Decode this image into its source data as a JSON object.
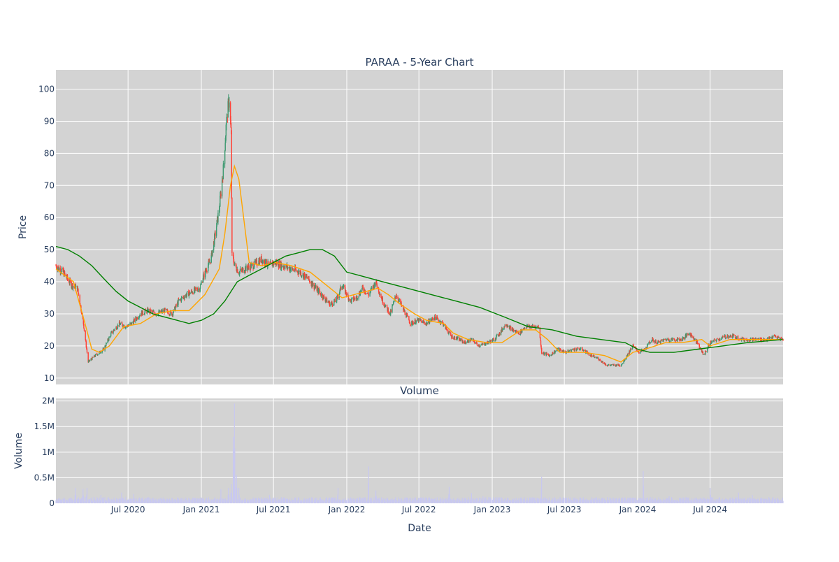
{
  "chart_data": [
    {
      "type": "candlestick",
      "title": "PARAA - 5-Year Chart",
      "xlabel": "",
      "ylabel": "Price",
      "ylim": [
        8,
        106
      ],
      "yticks": [
        10,
        20,
        30,
        40,
        50,
        60,
        70,
        80,
        90,
        100
      ],
      "grid": true,
      "background_color": "#d3d3d3",
      "candle_up_color": "#3d9970",
      "candle_down_color": "#ff4136",
      "close_series_approx": {
        "name": "",
        "x": [
          "2020-01-02",
          "2020-01-20",
          "2020-02-10",
          "2020-02-25",
          "2020-03-10",
          "2020-03-23",
          "2020-04-10",
          "2020-05-01",
          "2020-05-20",
          "2020-06-10",
          "2020-06-25",
          "2020-07-10",
          "2020-08-01",
          "2020-08-20",
          "2020-09-10",
          "2020-10-01",
          "2020-10-20",
          "2020-11-05",
          "2020-11-25",
          "2020-12-10",
          "2020-12-28",
          "2021-01-10",
          "2021-01-25",
          "2021-02-05",
          "2021-02-15",
          "2021-02-25",
          "2021-03-05",
          "2021-03-12",
          "2021-03-17",
          "2021-03-19",
          "2021-03-22",
          "2021-03-26",
          "2021-04-05",
          "2021-04-20",
          "2021-05-10",
          "2021-06-01",
          "2021-06-20",
          "2021-07-05",
          "2021-07-25",
          "2021-08-15",
          "2021-09-05",
          "2021-09-25",
          "2021-10-15",
          "2021-11-05",
          "2021-11-20",
          "2021-12-05",
          "2021-12-20",
          "2022-01-10",
          "2022-01-25",
          "2022-02-10",
          "2022-02-25",
          "2022-03-15",
          "2022-04-01",
          "2022-04-20",
          "2022-05-05",
          "2022-05-20",
          "2022-06-10",
          "2022-06-30",
          "2022-07-20",
          "2022-08-10",
          "2022-08-30",
          "2022-09-20",
          "2022-10-10",
          "2022-10-25",
          "2022-11-10",
          "2022-11-30",
          "2022-12-20",
          "2023-01-05",
          "2023-01-20",
          "2023-02-05",
          "2023-02-20",
          "2023-03-10",
          "2023-03-25",
          "2023-04-10",
          "2023-04-28",
          "2023-05-05",
          "2023-05-25",
          "2023-06-15",
          "2023-07-05",
          "2023-07-25",
          "2023-08-15",
          "2023-09-05",
          "2023-09-25",
          "2023-10-15",
          "2023-11-01",
          "2023-11-20",
          "2023-12-05",
          "2023-12-20",
          "2024-01-05",
          "2024-01-20",
          "2024-02-05",
          "2024-02-20",
          "2024-03-10",
          "2024-03-30",
          "2024-04-20",
          "2024-05-10",
          "2024-05-30",
          "2024-06-15",
          "2024-07-01",
          "2024-07-20",
          "2024-08-10",
          "2024-08-30",
          "2024-09-20",
          "2024-10-10",
          "2024-10-30",
          "2024-11-20",
          "2024-12-10",
          "2024-12-30"
        ],
        "values": [
          45,
          43,
          39,
          38,
          28,
          15,
          17,
          19,
          24,
          27,
          26,
          27,
          30,
          31,
          30,
          31,
          30,
          34,
          36,
          37,
          38,
          43,
          47,
          55,
          63,
          75,
          90,
          97,
          85,
          48,
          47,
          45,
          43,
          44,
          45,
          47,
          45,
          46,
          45,
          44,
          43,
          41,
          38,
          35,
          33,
          34,
          39,
          34,
          35,
          38,
          36,
          40,
          34,
          30,
          36,
          32,
          27,
          28,
          27,
          29,
          27,
          23,
          22,
          21,
          22,
          20,
          21,
          22,
          24,
          27,
          25,
          24,
          26,
          26,
          26,
          18,
          17,
          19,
          18,
          19,
          19,
          17,
          16,
          14,
          14,
          14,
          17,
          20,
          18,
          19,
          22,
          21,
          22,
          22,
          22,
          24,
          21,
          17,
          21,
          22,
          23,
          23,
          22,
          22,
          22,
          22,
          23,
          22
        ]
      },
      "series": [
        {
          "name": "",
          "color": "#ffa500",
          "x": [
            "2020-01-02",
            "2020-02-15",
            "2020-03-15",
            "2020-04-01",
            "2020-04-20",
            "2020-05-15",
            "2020-06-20",
            "2020-08-01",
            "2020-09-10",
            "2020-10-20",
            "2020-12-01",
            "2021-01-10",
            "2021-02-15",
            "2021-03-01",
            "2021-03-15",
            "2021-03-25",
            "2021-04-05",
            "2021-04-15",
            "2021-05-01",
            "2021-06-01",
            "2021-07-05",
            "2021-08-15",
            "2021-10-01",
            "2021-11-20",
            "2021-12-20",
            "2022-01-20",
            "2022-02-20",
            "2022-03-20",
            "2022-04-15",
            "2022-05-15",
            "2022-06-20",
            "2022-07-20",
            "2022-09-01",
            "2022-09-25",
            "2022-11-01",
            "2022-12-20",
            "2023-01-25",
            "2023-03-15",
            "2023-04-20",
            "2023-05-20",
            "2023-06-20",
            "2023-08-20",
            "2023-10-10",
            "2023-11-20",
            "2023-12-20",
            "2024-01-20",
            "2024-03-10",
            "2024-04-20",
            "2024-06-10",
            "2024-07-01",
            "2024-08-20",
            "2024-10-15",
            "2024-12-30"
          ],
          "values": [
            44,
            40,
            27,
            19,
            18,
            20,
            26,
            27,
            30,
            31,
            31,
            36,
            44,
            55,
            70,
            76,
            72,
            62,
            46,
            45,
            46,
            45,
            43,
            38,
            35,
            36,
            37,
            38,
            36,
            33,
            30,
            28,
            27,
            24,
            22,
            21,
            21,
            25,
            25,
            22,
            18,
            18,
            17,
            15,
            18,
            19,
            21,
            21,
            22,
            20,
            22,
            22,
            22
          ]
        },
        {
          "name": "",
          "color": "#008000",
          "x": [
            "2020-01-02",
            "2020-02-01",
            "2020-03-01",
            "2020-04-01",
            "2020-05-01",
            "2020-06-01",
            "2020-07-01",
            "2020-08-01",
            "2020-09-01",
            "2020-10-01",
            "2020-11-01",
            "2020-12-01",
            "2021-01-01",
            "2021-02-01",
            "2021-03-01",
            "2021-04-01",
            "2021-05-01",
            "2021-06-01",
            "2021-07-01",
            "2021-08-01",
            "2021-09-01",
            "2021-10-01",
            "2021-11-01",
            "2021-12-01",
            "2022-01-01",
            "2022-02-01",
            "2022-04-01",
            "2022-06-01",
            "2022-08-01",
            "2022-10-01",
            "2022-12-01",
            "2023-02-01",
            "2023-04-01",
            "2023-06-01",
            "2023-08-01",
            "2023-10-01",
            "2023-12-01",
            "2024-01-01",
            "2024-02-01",
            "2024-04-01",
            "2024-06-01",
            "2024-08-01",
            "2024-10-01",
            "2024-12-30"
          ],
          "values": [
            51,
            50,
            48,
            45,
            41,
            37,
            34,
            32,
            30,
            29,
            28,
            27,
            28,
            30,
            34,
            40,
            42,
            44,
            46,
            48,
            49,
            50,
            50,
            48,
            43,
            42,
            40,
            38,
            36,
            34,
            32,
            29,
            26,
            25,
            23,
            22,
            21,
            19,
            18,
            18,
            19,
            20,
            21,
            22
          ]
        }
      ]
    },
    {
      "type": "bar",
      "title": "Volume",
      "xlabel": "Date",
      "ylabel": "Volume",
      "ylim": [
        0,
        2050000
      ],
      "ytick_values": [
        0,
        500000,
        1000000,
        1500000,
        2000000
      ],
      "ytick_labels": [
        "0",
        "0.5M",
        "1M",
        "1.5M",
        "2M"
      ],
      "xtick_dates": [
        "2020-07-01",
        "2021-01-01",
        "2021-07-01",
        "2022-01-01",
        "2022-07-01",
        "2023-01-01",
        "2023-07-01",
        "2024-01-01",
        "2024-07-01"
      ],
      "xtick_labels": [
        "Jul 2020",
        "Jan 2021",
        "Jul 2021",
        "Jan 2022",
        "Jul 2022",
        "Jan 2023",
        "Jul 2023",
        "Jan 2024",
        "Jul 2024"
      ],
      "xlim": [
        "2020-01-02",
        "2024-12-31"
      ],
      "bar_color": "#c8c8f0",
      "grid": true,
      "background_color": "#d3d3d3",
      "baseline": 80000,
      "spikes": [
        {
          "x": "2020-02-20",
          "value": 300000
        },
        {
          "x": "2020-03-10",
          "value": 280000
        },
        {
          "x": "2020-03-20",
          "value": 300000
        },
        {
          "x": "2020-04-05",
          "value": 230000
        },
        {
          "x": "2020-04-25",
          "value": 300000
        },
        {
          "x": "2020-06-15",
          "value": 210000
        },
        {
          "x": "2020-07-15",
          "value": 180000
        },
        {
          "x": "2021-02-20",
          "value": 500000
        },
        {
          "x": "2021-03-10",
          "value": 300000
        },
        {
          "x": "2021-03-17",
          "value": 380000
        },
        {
          "x": "2021-03-22",
          "value": 1300000
        },
        {
          "x": "2021-03-25",
          "value": 1950000
        },
        {
          "x": "2021-03-30",
          "value": 550000
        },
        {
          "x": "2021-04-05",
          "value": 300000
        },
        {
          "x": "2021-06-20",
          "value": 300000
        },
        {
          "x": "2021-12-10",
          "value": 300000
        },
        {
          "x": "2022-02-25",
          "value": 720000
        },
        {
          "x": "2022-03-15",
          "value": 250000
        },
        {
          "x": "2022-09-15",
          "value": 320000
        },
        {
          "x": "2022-11-10",
          "value": 200000
        },
        {
          "x": "2022-12-10",
          "value": 250000
        },
        {
          "x": "2023-05-05",
          "value": 520000
        },
        {
          "x": "2023-08-05",
          "value": 160000
        },
        {
          "x": "2023-12-10",
          "value": 180000
        },
        {
          "x": "2024-01-15",
          "value": 630000
        },
        {
          "x": "2024-02-10",
          "value": 130000
        },
        {
          "x": "2024-03-20",
          "value": 140000
        },
        {
          "x": "2024-05-05",
          "value": 200000
        },
        {
          "x": "2024-07-01",
          "value": 300000
        },
        {
          "x": "2024-09-10",
          "value": 210000
        },
        {
          "x": "2024-10-15",
          "value": 160000
        }
      ]
    }
  ]
}
